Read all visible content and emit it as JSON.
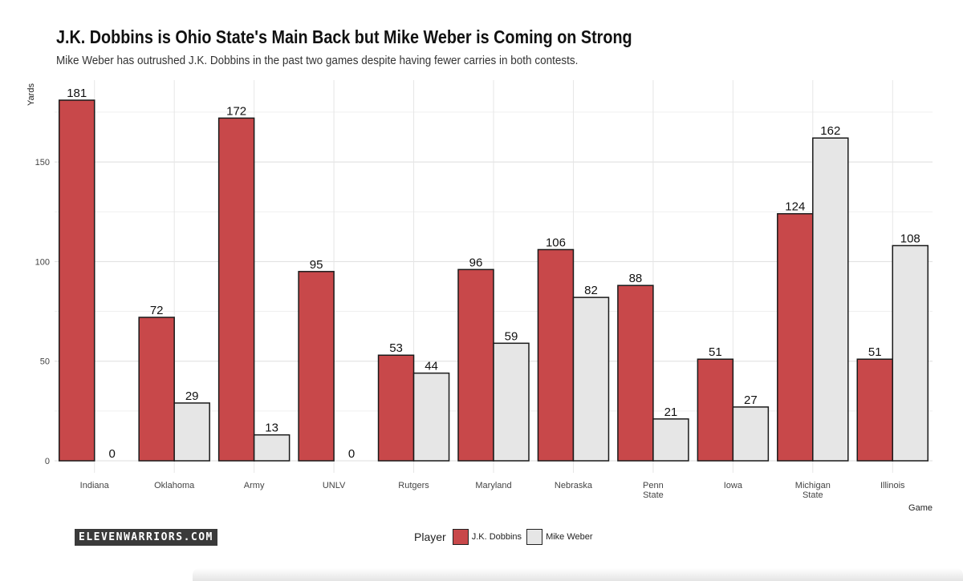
{
  "header": {
    "title": "J.K. Dobbins is Ohio State's Main Back but Mike Weber is Coming on Strong",
    "subtitle": "Mike Weber has outrushed J.K. Dobbins in the past two games despite having fewer carries in both contests."
  },
  "brand": {
    "logo_text": "ELEVENWARRIORS.COM"
  },
  "legend": {
    "title": "Player",
    "items": [
      {
        "label": "J.K. Dobbins",
        "color": "#c8484a"
      },
      {
        "label": "Mike Weber",
        "color": "#e6e6e6"
      }
    ]
  },
  "chart_data": {
    "type": "bar",
    "title": "J.K. Dobbins is Ohio State's Main Back but Mike Weber is Coming on Strong",
    "subtitle": "Mike Weber has outrushed J.K. Dobbins in the past two games despite having fewer carries in both contests.",
    "xlabel": "Game",
    "ylabel": "Yards",
    "ylim": [
      0,
      183
    ],
    "yticks": [
      0,
      50,
      100,
      150
    ],
    "categories": [
      "Indiana",
      "Oklahoma",
      "Army",
      "UNLV",
      "Rutgers",
      "Maryland",
      "Nebraska",
      "Penn State",
      "Iowa",
      "Michigan State",
      "Illinois"
    ],
    "series": [
      {
        "name": "J.K. Dobbins",
        "color": "#c8484a",
        "values": [
          181,
          72,
          172,
          95,
          53,
          96,
          106,
          88,
          51,
          124,
          51
        ]
      },
      {
        "name": "Mike Weber",
        "color": "#e6e6e6",
        "values": [
          0,
          29,
          13,
          0,
          44,
          59,
          82,
          21,
          27,
          162,
          108
        ]
      }
    ],
    "grid": true,
    "legend_position": "bottom"
  }
}
